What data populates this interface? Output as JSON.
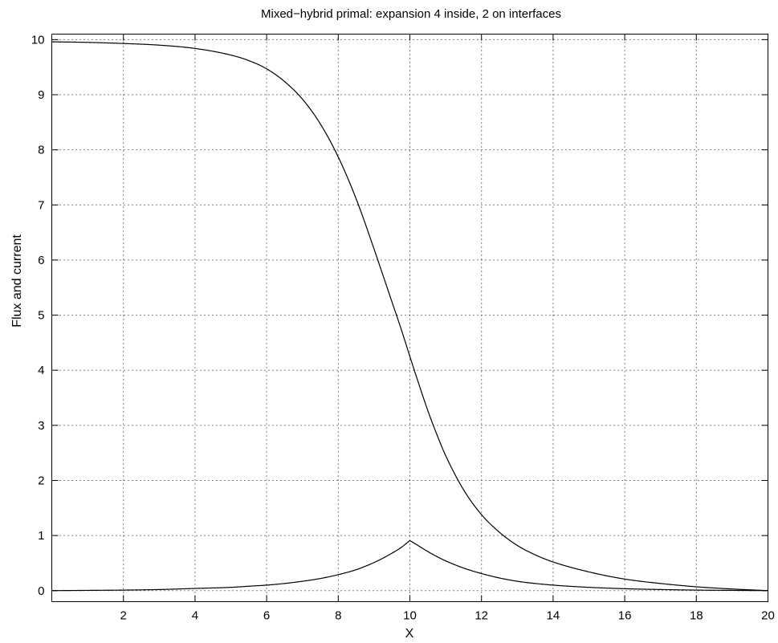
{
  "chart_data": {
    "type": "line",
    "title": "Mixed−hybrid primal: expansion 4 inside, 2 on interfaces",
    "xlabel": "X",
    "ylabel": "Flux and current",
    "xlim": [
      0,
      20
    ],
    "ylim": [
      -0.2,
      10.1
    ],
    "xticks": [
      2,
      4,
      6,
      8,
      10,
      12,
      14,
      16,
      18,
      20
    ],
    "yticks": [
      0,
      1,
      2,
      3,
      4,
      5,
      6,
      7,
      8,
      9,
      10
    ],
    "grid": true,
    "grid_style": "dotted",
    "line_color": "#000000",
    "series": [
      {
        "x": [
          0,
          1,
          2,
          3,
          4,
          5,
          5.5,
          6,
          6.5,
          7,
          7.5,
          8,
          8.5,
          9,
          9.25,
          9.5,
          9.75,
          10,
          10.25,
          10.5,
          10.75,
          11,
          11.5,
          12,
          12.5,
          13,
          13.5,
          14,
          15,
          16,
          17,
          18,
          19,
          20
        ],
        "values": [
          9.96,
          9.95,
          9.93,
          9.9,
          9.84,
          9.72,
          9.62,
          9.47,
          9.24,
          8.92,
          8.47,
          7.87,
          7.11,
          6.2,
          5.72,
          5.24,
          4.76,
          4.25,
          3.75,
          3.27,
          2.84,
          2.45,
          1.83,
          1.38,
          1.06,
          0.82,
          0.65,
          0.52,
          0.34,
          0.21,
          0.13,
          0.07,
          0.03,
          0.0
        ]
      },
      {
        "x": [
          0,
          1,
          2,
          3,
          4,
          5,
          5.5,
          6,
          6.5,
          7,
          7.5,
          8,
          8.5,
          9,
          9.25,
          9.5,
          9.75,
          10,
          10.25,
          10.5,
          10.75,
          11,
          11.5,
          12,
          12.5,
          13,
          13.5,
          14,
          15,
          16,
          17,
          18,
          19,
          20
        ],
        "values": [
          0.0,
          0.005,
          0.01,
          0.02,
          0.04,
          0.06,
          0.08,
          0.1,
          0.13,
          0.17,
          0.22,
          0.29,
          0.38,
          0.51,
          0.59,
          0.68,
          0.78,
          0.91,
          0.81,
          0.71,
          0.62,
          0.54,
          0.41,
          0.31,
          0.23,
          0.17,
          0.13,
          0.1,
          0.06,
          0.035,
          0.02,
          0.01,
          0.005,
          0.0
        ]
      }
    ]
  }
}
